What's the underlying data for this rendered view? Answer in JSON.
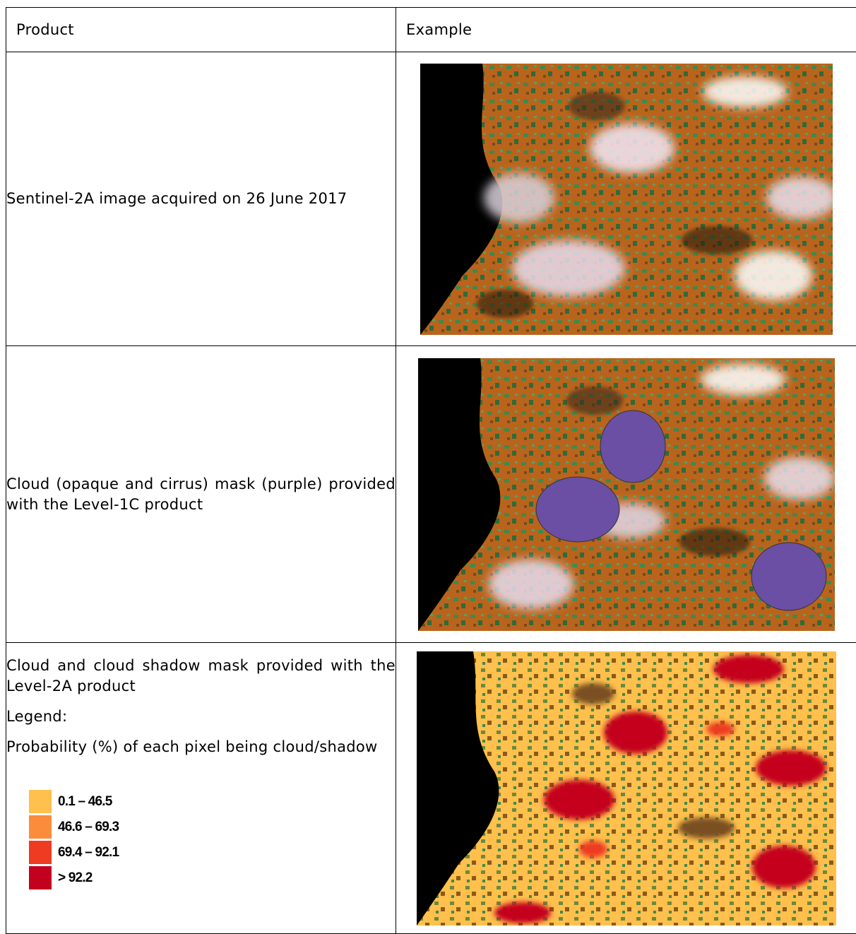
{
  "header": {
    "col1": "Product",
    "col2": "Example"
  },
  "rows": [
    {
      "text": "Sentinel-2A image acquired on 26 June 2017"
    },
    {
      "text": "Cloud (opaque and cirrus) mask (purple) provided with the Level-1C product"
    },
    {
      "text": "Cloud and cloud shadow mask provided with the Level-2A product",
      "legend_title": "Legend:",
      "legend_desc": "Probability (%) of each pixel being cloud/shadow",
      "legend_items": [
        {
          "label": "0.1 – 46.5",
          "color": "#ffc04d"
        },
        {
          "label": "46.6 – 69.3",
          "color": "#fb8c3c"
        },
        {
          "label": "69.4 – 92.1",
          "color": "#ee3b22"
        },
        {
          "label": "> 92.2",
          "color": "#c4001f"
        }
      ]
    }
  ],
  "colors": {
    "cloud_mask_purple": "#6a4fa4",
    "land_orange": "#c46a1e",
    "vegetation_green": "#3e8a4a",
    "sea_black": "#000000"
  }
}
